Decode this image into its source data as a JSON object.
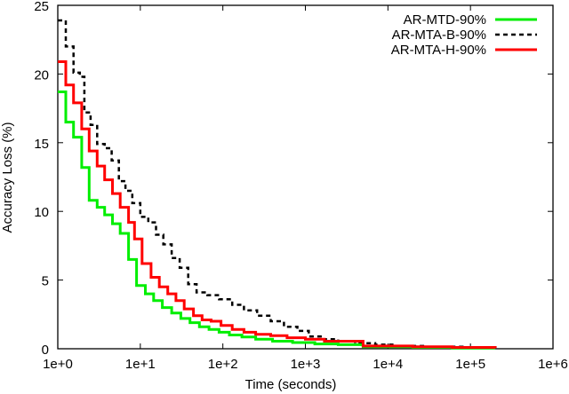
{
  "chart_data": {
    "type": "line",
    "title": "",
    "xlabel": "Time (seconds)",
    "ylabel": "Accuracy Loss (%)",
    "xscale": "log",
    "xlim": [
      1,
      1000000
    ],
    "ylim": [
      0,
      25
    ],
    "grid": false,
    "legend_position": "top-right",
    "x_ticks": [
      "1e+0",
      "1e+1",
      "1e+2",
      "1e+3",
      "1e+4",
      "1e+5",
      "1e+6"
    ],
    "y_ticks": [
      "0",
      "5",
      "10",
      "15",
      "20",
      "25"
    ],
    "series": [
      {
        "name": "AR-MTD-90%",
        "color": "#00ee00",
        "style": "solid",
        "step": true,
        "points": [
          [
            1.0,
            18.7
          ],
          [
            1.25,
            16.5
          ],
          [
            1.55,
            15.4
          ],
          [
            1.95,
            13.2
          ],
          [
            2.4,
            10.8
          ],
          [
            3.0,
            10.3
          ],
          [
            3.7,
            9.75
          ],
          [
            4.6,
            9.1
          ],
          [
            5.7,
            8.4
          ],
          [
            7.2,
            6.5
          ],
          [
            9.0,
            4.6
          ],
          [
            11.5,
            4.0
          ],
          [
            14.5,
            3.5
          ],
          [
            18.5,
            3.0
          ],
          [
            24,
            2.6
          ],
          [
            31,
            2.2
          ],
          [
            40,
            1.9
          ],
          [
            52,
            1.6
          ],
          [
            68,
            1.4
          ],
          [
            90,
            1.2
          ],
          [
            120,
            1.0
          ],
          [
            170,
            0.85
          ],
          [
            250,
            0.7
          ],
          [
            400,
            0.55
          ],
          [
            700,
            0.45
          ],
          [
            1300,
            0.35
          ],
          [
            2500,
            0.3
          ],
          [
            5000,
            0.15
          ],
          [
            20000,
            0.1
          ],
          [
            60000,
            0.05
          ],
          [
            200000,
            0.05
          ]
        ]
      },
      {
        "name": "AR-MTA-B-90%",
        "color": "#000000",
        "style": "dashed",
        "step": true,
        "points": [
          [
            1.0,
            23.9
          ],
          [
            1.25,
            22.0
          ],
          [
            1.55,
            20.1
          ],
          [
            1.85,
            19.8
          ],
          [
            2.1,
            17.2
          ],
          [
            2.5,
            16.3
          ],
          [
            3.0,
            14.9
          ],
          [
            3.7,
            14.6
          ],
          [
            4.5,
            13.7
          ],
          [
            5.5,
            12.2
          ],
          [
            6.6,
            11.5
          ],
          [
            8.0,
            10.6
          ],
          [
            10.0,
            9.6
          ],
          [
            12.5,
            9.2
          ],
          [
            15.5,
            8.3
          ],
          [
            19,
            7.6
          ],
          [
            24,
            6.6
          ],
          [
            30,
            5.9
          ],
          [
            38,
            4.7
          ],
          [
            48,
            4.1
          ],
          [
            65,
            3.9
          ],
          [
            90,
            3.6
          ],
          [
            130,
            3.2
          ],
          [
            180,
            2.8
          ],
          [
            260,
            2.4
          ],
          [
            380,
            2.0
          ],
          [
            550,
            1.6
          ],
          [
            800,
            1.3
          ],
          [
            1100,
            0.9
          ],
          [
            1600,
            0.7
          ],
          [
            2500,
            0.55
          ],
          [
            4000,
            0.4
          ],
          [
            7000,
            0.3
          ],
          [
            12000,
            0.2
          ],
          [
            30000,
            0.15
          ],
          [
            80000,
            0.1
          ],
          [
            150000,
            0.05
          ]
        ]
      },
      {
        "name": "AR-MTA-H-90%",
        "color": "#ff0000",
        "style": "solid",
        "step": true,
        "points": [
          [
            1.0,
            20.9
          ],
          [
            1.25,
            19.2
          ],
          [
            1.55,
            17.9
          ],
          [
            1.95,
            16.0
          ],
          [
            2.4,
            14.4
          ],
          [
            3.0,
            13.3
          ],
          [
            3.7,
            12.3
          ],
          [
            4.6,
            11.3
          ],
          [
            5.7,
            10.3
          ],
          [
            7.2,
            9.2
          ],
          [
            8.5,
            8.0
          ],
          [
            10.5,
            6.2
          ],
          [
            13.5,
            5.2
          ],
          [
            17,
            4.5
          ],
          [
            21.5,
            4.0
          ],
          [
            27,
            3.5
          ],
          [
            34,
            2.9
          ],
          [
            44,
            2.4
          ],
          [
            56,
            2.1
          ],
          [
            72,
            2.0
          ],
          [
            95,
            1.7
          ],
          [
            130,
            1.4
          ],
          [
            180,
            1.2
          ],
          [
            250,
            1.05
          ],
          [
            380,
            0.95
          ],
          [
            600,
            0.8
          ],
          [
            1000,
            0.7
          ],
          [
            1700,
            0.55
          ],
          [
            5000,
            0.2
          ],
          [
            20000,
            0.15
          ],
          [
            60000,
            0.1
          ],
          [
            200000,
            0.05
          ]
        ]
      }
    ]
  }
}
